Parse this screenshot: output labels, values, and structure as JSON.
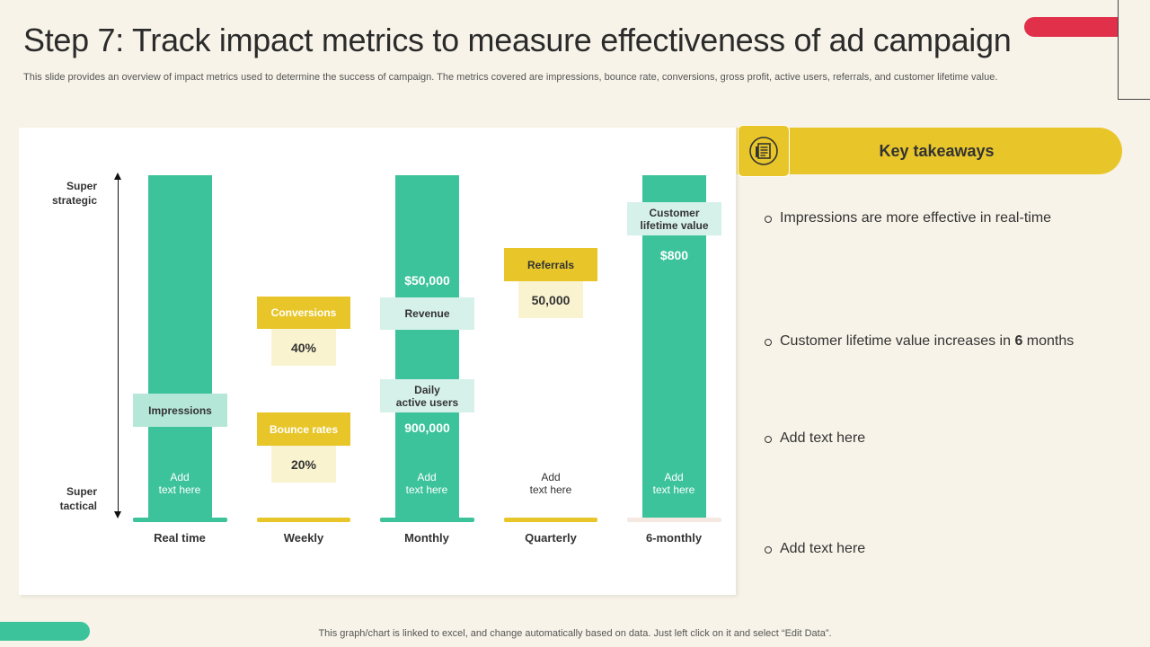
{
  "header": {
    "title": "Step 7: Track impact metrics to measure effectiveness of ad campaign",
    "subtitle": "This slide provides an overview of impact metrics used to determine the success of campaign. The metrics covered are impressions, bounce rate, conversions, gross profit, active users, referrals, and customer lifetime value."
  },
  "axis": {
    "top_label_line1": "Super",
    "top_label_line2": "strategic",
    "bottom_label_line1": "Super",
    "bottom_label_line2": "tactical"
  },
  "columns": {
    "realtime": {
      "label": "Real time",
      "chip": "Impressions",
      "add_line1": "Add",
      "add_line2": "text here"
    },
    "weekly": {
      "label": "Weekly",
      "conv_label": "Conversions",
      "conv_value": "40%",
      "bounce_label": "Bounce rates",
      "bounce_value": "20%"
    },
    "monthly": {
      "label": "Monthly",
      "revenue_value": "$50,000",
      "revenue_label": "Revenue",
      "dau_line1": "Daily",
      "dau_line2": "active users",
      "dau_value": "900,000",
      "add_line1": "Add",
      "add_line2": "text here"
    },
    "quarterly": {
      "label": "Quarterly",
      "ref_label": "Referrals",
      "ref_value": "50,000",
      "add_line1": "Add",
      "add_line2": "text here"
    },
    "sixmonthly": {
      "label": "6-monthly",
      "clv_line1": "Customer",
      "clv_line2": "lifetime value",
      "clv_value": "$800",
      "add_line1": "Add",
      "add_line2": "text here"
    }
  },
  "takeaways": {
    "title": "Key takeaways",
    "icon": "document-list-icon",
    "item1": "Impressions are more effective in real-time",
    "item2_prefix": "Customer lifetime value increases in ",
    "item2_bold": "6",
    "item2_suffix": " months",
    "item3": "Add text here",
    "item4": "Add text here"
  },
  "footer": {
    "note": "This graph/chart is linked to excel, and change automatically based on data. Just left click on it and select “Edit Data”."
  },
  "colors": {
    "teal": "#3cc39b",
    "yellow": "#e8c62a",
    "red": "#e0304a",
    "mint": "#d6f1ea",
    "pale_yellow": "#faf3cf",
    "background": "#f7f3e8"
  }
}
